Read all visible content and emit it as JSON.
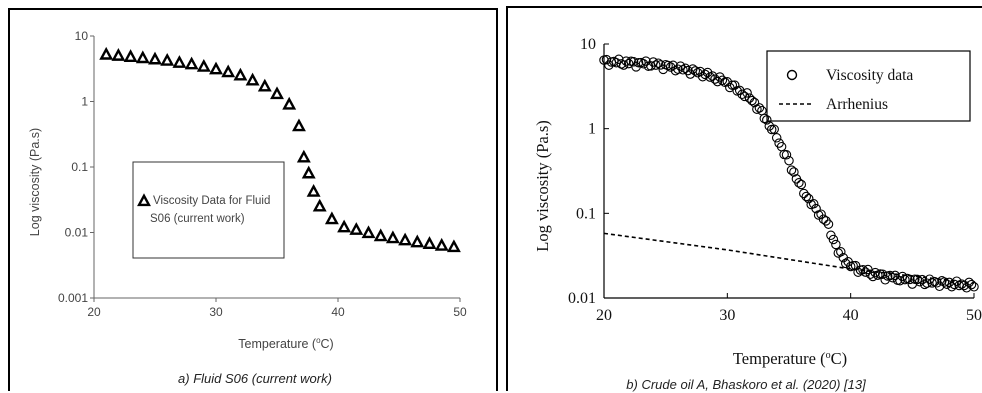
{
  "chart_data": [
    {
      "type": "scatter",
      "xlabel": "Temperature (",
      "xlabel_sup": "o",
      "xlabel_end": "C)",
      "ylabel": "Log viscosity (Pa.s)",
      "xlim": [
        20,
        50
      ],
      "ylim": [
        0.001,
        10
      ],
      "yscale": "log",
      "x_ticks": [
        "20",
        "30",
        "40",
        "50"
      ],
      "y_ticks": [
        "0.001",
        "0.01",
        "0.1",
        "1",
        "10"
      ],
      "caption": "a) Fluid S06 (current work)",
      "legend": {
        "position": "center-left",
        "line1": "Viscosity Data for Fluid",
        "line2": "S06 (current work)"
      },
      "marker": "open-triangle",
      "series": [
        {
          "name": "Viscosity Data for Fluid S06 (current work)",
          "x": [
            21,
            22,
            23,
            24,
            25,
            26,
            27,
            28,
            29,
            30,
            31,
            32,
            33,
            34,
            35,
            36,
            36.8,
            37.2,
            37.6,
            38.0,
            38.5,
            39.5,
            40.5,
            41.5,
            42.5,
            43.5,
            44.5,
            45.5,
            46.5,
            47.5,
            48.5,
            49.5
          ],
          "y": [
            5.2,
            5.0,
            4.8,
            4.6,
            4.4,
            4.2,
            3.9,
            3.7,
            3.4,
            3.1,
            2.8,
            2.5,
            2.1,
            1.7,
            1.3,
            0.9,
            0.42,
            0.14,
            0.08,
            0.042,
            0.025,
            0.016,
            0.012,
            0.011,
            0.0098,
            0.0088,
            0.0082,
            0.0076,
            0.0071,
            0.0067,
            0.0063,
            0.006
          ]
        }
      ]
    },
    {
      "type": "scatter",
      "xlabel": "Temperature (",
      "xlabel_sup": "o",
      "xlabel_end": "C)",
      "ylabel": "Log viscosity (Pa.s)",
      "xlim": [
        20,
        50
      ],
      "ylim": [
        0.01,
        10
      ],
      "yscale": "log",
      "x_ticks": [
        "20",
        "30",
        "40",
        "50"
      ],
      "y_ticks": [
        "0.01",
        "0.1",
        "1",
        "10"
      ],
      "caption": "b) Crude oil A, Bhaskoro et al. (2020) [13]",
      "legend": {
        "position": "top-right"
      },
      "series": [
        {
          "name": "Viscosity data",
          "marker": "open-circle",
          "curve": {
            "x": [
              20,
              22,
              24,
              26,
              28,
              30,
              32,
              33,
              34,
              35,
              36,
              37,
              37.5,
              38,
              38.5,
              39,
              40,
              41,
              42,
              43,
              44,
              45,
              46,
              48,
              50
            ],
            "y": [
              6.2,
              6.0,
              5.8,
              5.2,
              4.5,
              3.5,
              2.2,
              1.4,
              0.8,
              0.4,
              0.2,
              0.12,
              0.1,
              0.08,
              0.055,
              0.035,
              0.024,
              0.021,
              0.019,
              0.018,
              0.017,
              0.0162,
              0.0156,
              0.0148,
              0.014
            ]
          }
        },
        {
          "name": "Arrhenius",
          "marker": "dashed-line",
          "x": [
            20,
            30,
            40,
            50
          ],
          "y": [
            0.058,
            0.037,
            0.022,
            0.015
          ]
        }
      ]
    }
  ]
}
